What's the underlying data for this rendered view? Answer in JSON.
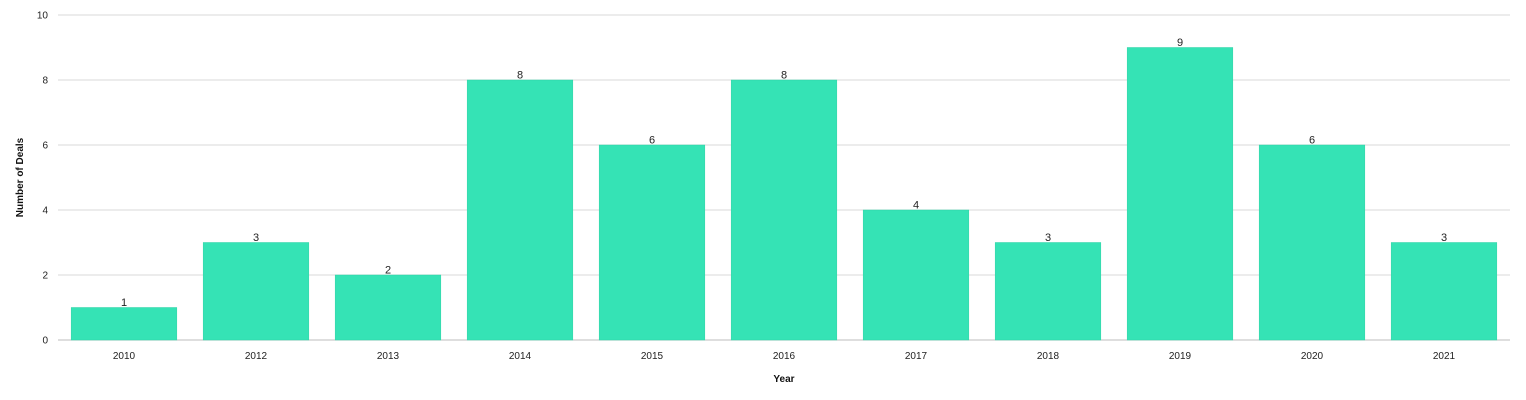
{
  "chart_data": {
    "type": "bar",
    "categories": [
      "2010",
      "2012",
      "2013",
      "2014",
      "2015",
      "2016",
      "2017",
      "2018",
      "2019",
      "2020",
      "2021"
    ],
    "values": [
      1,
      3,
      2,
      8,
      6,
      8,
      4,
      3,
      9,
      6,
      3
    ],
    "xlabel": "Year",
    "ylabel": "Number of Deals",
    "ylim": [
      0,
      10
    ],
    "yticks": [
      0,
      2,
      4,
      6,
      8,
      10
    ],
    "grid": true,
    "show_data_labels": true,
    "bar_color": "#35e3b5",
    "legend": "none"
  }
}
